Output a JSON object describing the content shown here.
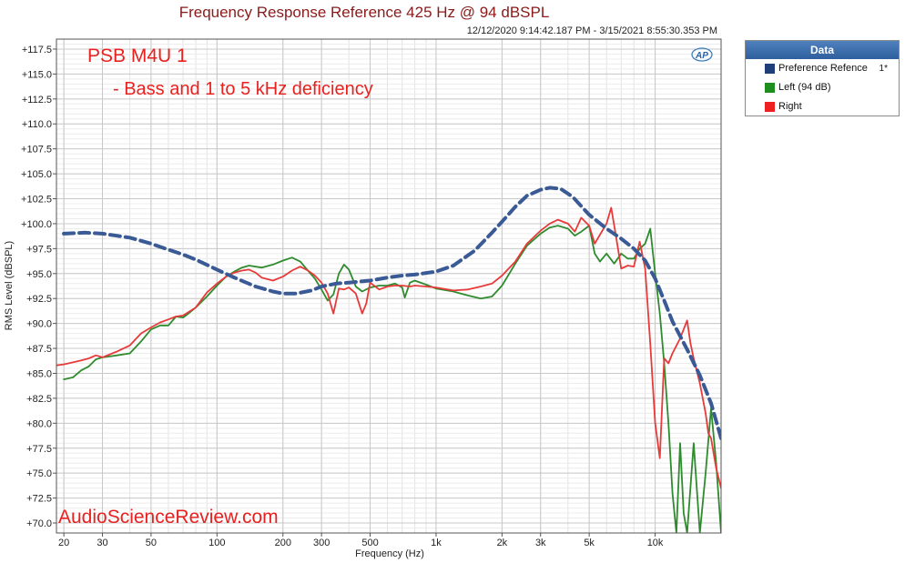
{
  "chart_data": {
    "type": "line",
    "title": "Frequency Response Reference 425 Hz @ 94 dBSPL",
    "subtitle": "12/12/2020 9:14:42.187 PM - 3/15/2021 8:55:30.353 PM",
    "xlabel": "Frequency (Hz)",
    "ylabel": "RMS Level (dBSPL)",
    "x_scale": "log",
    "xlim": [
      18.5,
      20000
    ],
    "ylim": [
      69,
      118.5
    ],
    "grid": true,
    "x_ticks": [
      "20",
      "30",
      "50",
      "100",
      "200",
      "300",
      "500",
      "1k",
      "2k",
      "3k",
      "5k",
      "10k"
    ],
    "y_ticks": [
      "+117.5",
      "+115.0",
      "+112.5",
      "+110.0",
      "+107.5",
      "+105.0",
      "+102.5",
      "+100.0",
      "+97.5",
      "+95.0",
      "+92.5",
      "+90.0",
      "+87.5",
      "+85.0",
      "+82.5",
      "+80.0",
      "+77.5",
      "+75.0",
      "+72.5",
      "+70.0"
    ],
    "legend_title": "Data",
    "legend_position": "right",
    "series": [
      {
        "name": "Preference Refence",
        "flag": "1*",
        "color": "#3a5a96",
        "style": "dashed",
        "points": [
          [
            20,
            99.0
          ],
          [
            25,
            99.1
          ],
          [
            30,
            99.0
          ],
          [
            40,
            98.6
          ],
          [
            50,
            98.0
          ],
          [
            60,
            97.4
          ],
          [
            70,
            96.9
          ],
          [
            80,
            96.4
          ],
          [
            100,
            95.4
          ],
          [
            120,
            94.6
          ],
          [
            150,
            93.7
          ],
          [
            180,
            93.2
          ],
          [
            200,
            93.0
          ],
          [
            230,
            93.0
          ],
          [
            270,
            93.3
          ],
          [
            300,
            93.7
          ],
          [
            350,
            94.0
          ],
          [
            400,
            94.1
          ],
          [
            500,
            94.3
          ],
          [
            600,
            94.6
          ],
          [
            700,
            94.8
          ],
          [
            800,
            94.9
          ],
          [
            1000,
            95.2
          ],
          [
            1200,
            95.8
          ],
          [
            1500,
            97.3
          ],
          [
            1800,
            99.1
          ],
          [
            2000,
            100.2
          ],
          [
            2300,
            101.7
          ],
          [
            2600,
            102.8
          ],
          [
            3000,
            103.4
          ],
          [
            3300,
            103.6
          ],
          [
            3700,
            103.5
          ],
          [
            4200,
            102.7
          ],
          [
            5000,
            100.9
          ],
          [
            6000,
            99.5
          ],
          [
            7000,
            98.5
          ],
          [
            8000,
            97.5
          ],
          [
            9000,
            96.3
          ],
          [
            10000,
            94.5
          ],
          [
            11000,
            92.3
          ],
          [
            12000,
            90.2
          ],
          [
            14000,
            87.4
          ],
          [
            16000,
            84.8
          ],
          [
            18000,
            82.0
          ],
          [
            20000,
            78.5
          ]
        ]
      },
      {
        "name": "Left (94 dB)",
        "color": "#2e8b2e",
        "style": "solid",
        "points": [
          [
            20,
            84.4
          ],
          [
            22,
            84.6
          ],
          [
            24,
            85.3
          ],
          [
            26,
            85.7
          ],
          [
            28,
            86.4
          ],
          [
            30,
            86.6
          ],
          [
            35,
            86.8
          ],
          [
            40,
            87.0
          ],
          [
            45,
            88.2
          ],
          [
            50,
            89.4
          ],
          [
            55,
            89.8
          ],
          [
            60,
            89.8
          ],
          [
            65,
            90.7
          ],
          [
            70,
            90.6
          ],
          [
            75,
            91.1
          ],
          [
            80,
            91.6
          ],
          [
            90,
            92.7
          ],
          [
            100,
            93.8
          ],
          [
            110,
            94.7
          ],
          [
            120,
            95.2
          ],
          [
            130,
            95.6
          ],
          [
            140,
            95.8
          ],
          [
            160,
            95.6
          ],
          [
            180,
            95.9
          ],
          [
            200,
            96.3
          ],
          [
            220,
            96.6
          ],
          [
            240,
            96.2
          ],
          [
            260,
            95.3
          ],
          [
            280,
            94.5
          ],
          [
            300,
            93.4
          ],
          [
            320,
            92.3
          ],
          [
            340,
            92.9
          ],
          [
            360,
            95.0
          ],
          [
            380,
            95.9
          ],
          [
            400,
            95.4
          ],
          [
            430,
            93.7
          ],
          [
            460,
            93.2
          ],
          [
            500,
            93.6
          ],
          [
            550,
            93.8
          ],
          [
            600,
            93.8
          ],
          [
            650,
            94.0
          ],
          [
            700,
            93.6
          ],
          [
            720,
            92.6
          ],
          [
            760,
            94.1
          ],
          [
            800,
            94.3
          ],
          [
            900,
            93.9
          ],
          [
            1000,
            93.5
          ],
          [
            1200,
            93.2
          ],
          [
            1400,
            92.8
          ],
          [
            1600,
            92.5
          ],
          [
            1800,
            92.7
          ],
          [
            2000,
            93.8
          ],
          [
            2300,
            96.0
          ],
          [
            2600,
            97.8
          ],
          [
            3000,
            99.0
          ],
          [
            3300,
            99.6
          ],
          [
            3600,
            99.8
          ],
          [
            4000,
            99.5
          ],
          [
            4300,
            98.8
          ],
          [
            4600,
            99.2
          ],
          [
            5000,
            99.8
          ],
          [
            5300,
            97.0
          ],
          [
            5600,
            96.2
          ],
          [
            6000,
            97.0
          ],
          [
            6500,
            96.0
          ],
          [
            7000,
            97.0
          ],
          [
            7500,
            96.5
          ],
          [
            8000,
            96.5
          ],
          [
            8500,
            97.5
          ],
          [
            9000,
            98.0
          ],
          [
            9500,
            99.5
          ],
          [
            10000,
            95.0
          ],
          [
            10500,
            91.0
          ],
          [
            11000,
            86.0
          ],
          [
            11500,
            80.0
          ],
          [
            12000,
            73.0
          ],
          [
            12500,
            69.0
          ],
          [
            13000,
            78.0
          ],
          [
            13500,
            71.0
          ],
          [
            14000,
            69.0
          ],
          [
            15000,
            78.0
          ],
          [
            16000,
            69.0
          ],
          [
            17000,
            75.0
          ],
          [
            18000,
            81.5
          ],
          [
            19000,
            76.0
          ],
          [
            20000,
            69.0
          ]
        ]
      },
      {
        "name": "Right",
        "color": "#e83a3a",
        "style": "solid",
        "points": [
          [
            18.5,
            85.8
          ],
          [
            20,
            85.9
          ],
          [
            22,
            86.1
          ],
          [
            24,
            86.3
          ],
          [
            26,
            86.5
          ],
          [
            28,
            86.8
          ],
          [
            30,
            86.6
          ],
          [
            35,
            87.2
          ],
          [
            40,
            87.8
          ],
          [
            45,
            89.0
          ],
          [
            50,
            89.6
          ],
          [
            55,
            90.1
          ],
          [
            60,
            90.4
          ],
          [
            65,
            90.7
          ],
          [
            70,
            90.8
          ],
          [
            80,
            91.6
          ],
          [
            90,
            93.1
          ],
          [
            100,
            94.0
          ],
          [
            110,
            94.7
          ],
          [
            120,
            95.1
          ],
          [
            130,
            95.3
          ],
          [
            140,
            95.4
          ],
          [
            150,
            95.1
          ],
          [
            160,
            94.6
          ],
          [
            180,
            94.3
          ],
          [
            200,
            94.7
          ],
          [
            220,
            95.3
          ],
          [
            240,
            95.7
          ],
          [
            260,
            95.3
          ],
          [
            280,
            94.8
          ],
          [
            300,
            94.1
          ],
          [
            320,
            93.0
          ],
          [
            340,
            91.0
          ],
          [
            360,
            93.5
          ],
          [
            380,
            93.4
          ],
          [
            400,
            93.6
          ],
          [
            430,
            93.0
          ],
          [
            460,
            91.0
          ],
          [
            480,
            92.0
          ],
          [
            500,
            94.1
          ],
          [
            550,
            93.4
          ],
          [
            600,
            93.7
          ],
          [
            650,
            93.8
          ],
          [
            700,
            93.8
          ],
          [
            760,
            93.7
          ],
          [
            800,
            93.8
          ],
          [
            900,
            93.7
          ],
          [
            1000,
            93.6
          ],
          [
            1200,
            93.3
          ],
          [
            1400,
            93.4
          ],
          [
            1600,
            93.7
          ],
          [
            1800,
            94.0
          ],
          [
            2000,
            94.8
          ],
          [
            2300,
            96.2
          ],
          [
            2600,
            98.0
          ],
          [
            3000,
            99.3
          ],
          [
            3300,
            100.0
          ],
          [
            3600,
            100.4
          ],
          [
            4000,
            100.0
          ],
          [
            4300,
            99.2
          ],
          [
            4600,
            100.6
          ],
          [
            5000,
            99.8
          ],
          [
            5300,
            98.0
          ],
          [
            5600,
            98.9
          ],
          [
            6000,
            100.0
          ],
          [
            6300,
            101.6
          ],
          [
            6600,
            99.0
          ],
          [
            7000,
            95.5
          ],
          [
            7500,
            95.8
          ],
          [
            8000,
            95.7
          ],
          [
            8500,
            98.2
          ],
          [
            9000,
            95.5
          ],
          [
            9500,
            88.0
          ],
          [
            10000,
            80.0
          ],
          [
            10500,
            76.5
          ],
          [
            11000,
            86.5
          ],
          [
            11500,
            86.0
          ],
          [
            12000,
            87.0
          ],
          [
            13000,
            88.5
          ],
          [
            14000,
            90.3
          ],
          [
            14500,
            88.0
          ],
          [
            15000,
            86.5
          ],
          [
            16000,
            84.0
          ],
          [
            17000,
            81.0
          ],
          [
            17500,
            79.0
          ],
          [
            18000,
            78.5
          ],
          [
            19000,
            75.5
          ],
          [
            20000,
            73.5
          ]
        ]
      }
    ],
    "annotations": [
      {
        "text": "PSB M4U 1",
        "role": "main"
      },
      {
        "text": "- Bass and 1 to 5 kHz deficiency",
        "role": "sub"
      }
    ],
    "watermark": "AudioScienceReview.com",
    "logo_text": "AP"
  }
}
